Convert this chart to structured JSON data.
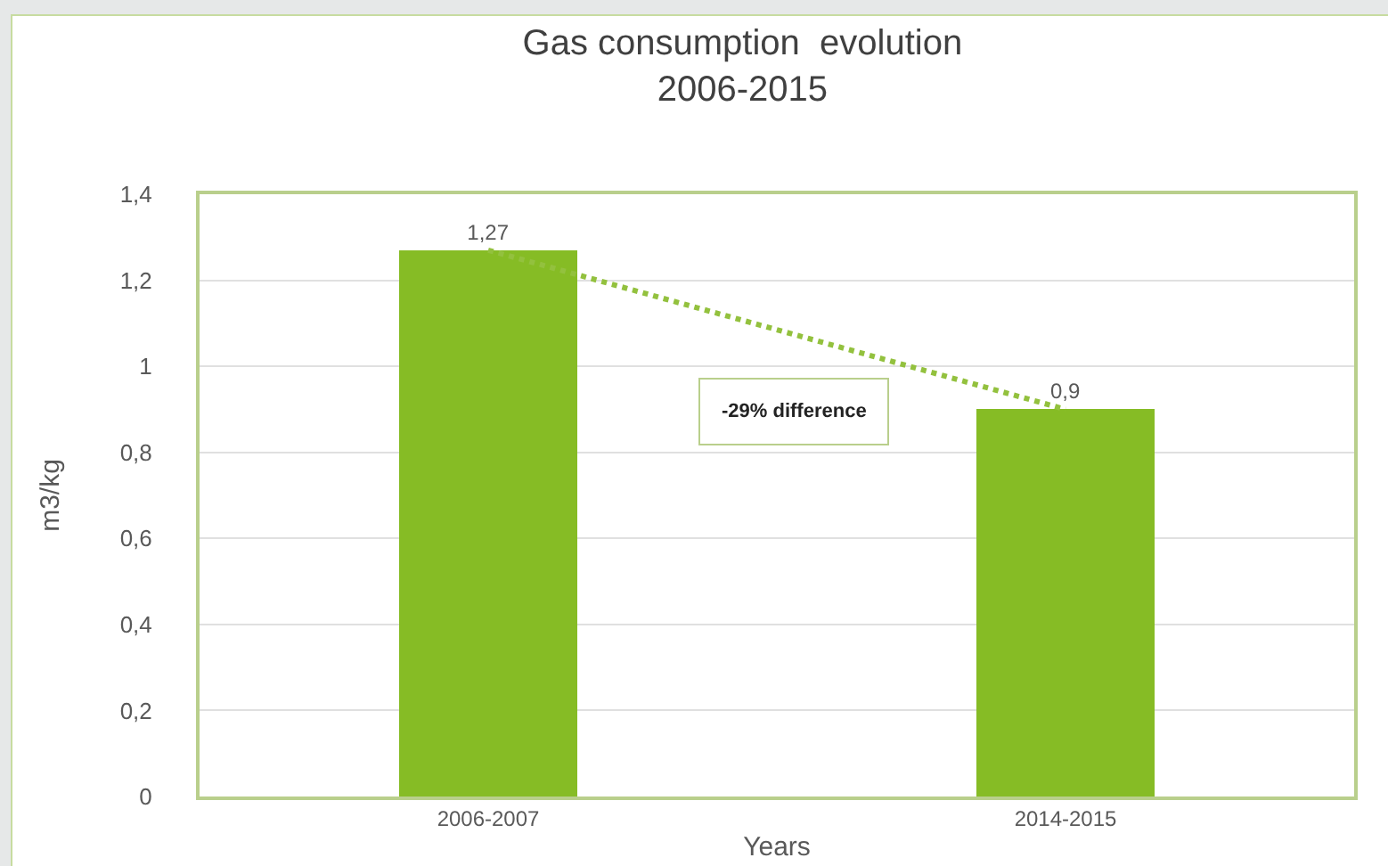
{
  "chart_data": {
    "type": "bar",
    "title": "Gas consumption  evolution\n2006-2015",
    "xlabel": "Years",
    "ylabel": "m3/kg",
    "categories": [
      "2006-2007",
      "2014-2015"
    ],
    "series": [
      {
        "color": "#86bc25",
        "values": [
          1.27,
          0.9
        ],
        "value_labels": [
          "1,27",
          "0,9"
        ]
      },
      {
        "type": "line",
        "x": [
          "2006-2007",
          "2014-2015"
        ],
        "color": "#93c13e",
        "values": [
          1.27,
          0.9
        ],
        "line_style": "dotted",
        "marker": "none"
      }
    ],
    "ylim": [
      0,
      1.4
    ],
    "yticks": [
      0,
      {
        "value": 0.2,
        "label": "0,2"
      },
      {
        "value": 0.4,
        "label": "0,4"
      },
      {
        "value": 0.6,
        "label": "0,6"
      },
      {
        "value": 0.8,
        "label": "0,8"
      },
      1,
      {
        "value": 1.2,
        "label": "1,2"
      },
      {
        "value": 1.4,
        "label": "1,4"
      }
    ],
    "grid": "y",
    "annotations": [
      "-29% difference"
    ]
  }
}
